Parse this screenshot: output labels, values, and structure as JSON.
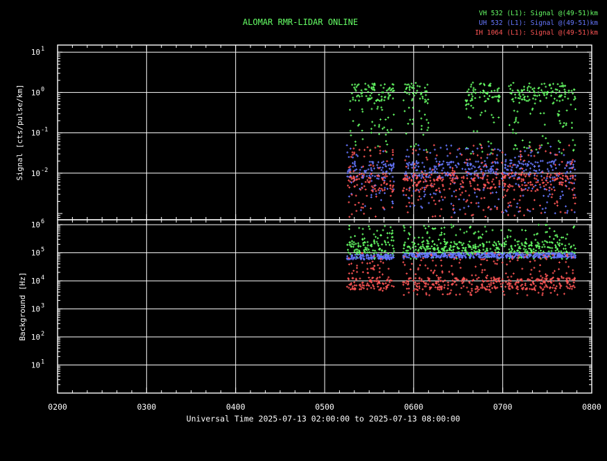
{
  "title": "ALOMAR RMR-LIDAR ONLINE",
  "legend": [
    {
      "name": "VH 532 (L1): Signal @(49-51)km",
      "color": "#66ff66"
    },
    {
      "name": "UH 532 (L1): Signal @(49-51)km",
      "color": "#6677ff"
    },
    {
      "name": "IH 1064 (L1): Signal @(49-51)km",
      "color": "#ff5555"
    }
  ],
  "colors": {
    "background": "#000000",
    "axes": "#ffffff",
    "grid": "#ffffff",
    "title": "#66ff66"
  },
  "chart_data": [
    {
      "type": "scatter",
      "ylabel": "Signal [cts/pulse/km]",
      "yscale": "log",
      "ylim": [
        0.0007,
        15
      ],
      "yticks": [
        {
          "base": "10",
          "exp": "1"
        },
        {
          "base": "10",
          "exp": "0"
        },
        {
          "base": "10",
          "exp": "-1"
        },
        {
          "base": "10",
          "exp": "-2"
        }
      ],
      "ytick_values": [
        10,
        1,
        0.1,
        0.01
      ],
      "xlim": [
        2,
        8
      ],
      "grid": true,
      "series": [
        {
          "name": "VH 532 (L1): Signal @(49-51)km",
          "segments": [
            [
              5.25,
              5.78
            ],
            [
              5.88,
              6.17
            ],
            [
              6.58,
              6.97
            ],
            [
              7.07,
              7.82
            ]
          ],
          "y_range": [
            0.03,
            1.8
          ],
          "typical": 1.0
        },
        {
          "name": "UH 532 (L1): Signal @(49-51)km",
          "segments": [
            [
              5.25,
              5.78
            ],
            [
              5.88,
              6.97
            ],
            [
              6.99,
              7.82
            ]
          ],
          "y_range": [
            0.001,
            0.05
          ],
          "typical": 0.012
        },
        {
          "name": "IH 1064 (L1): Signal @(49-51)km",
          "segments": [
            [
              5.25,
              5.78
            ],
            [
              5.88,
              6.97
            ],
            [
              6.99,
              7.82
            ]
          ],
          "y_range": [
            0.0008,
            0.05
          ],
          "typical": 0.006
        }
      ]
    },
    {
      "type": "scatter",
      "ylabel": "Background [Hz]",
      "yscale": "log",
      "ylim": [
        1,
        1500000
      ],
      "yticks": [
        {
          "base": "10",
          "exp": "6"
        },
        {
          "base": "10",
          "exp": "5"
        },
        {
          "base": "10",
          "exp": "4"
        },
        {
          "base": "10",
          "exp": "3"
        },
        {
          "base": "10",
          "exp": "2"
        },
        {
          "base": "10",
          "exp": "1"
        }
      ],
      "ytick_values": [
        1000000,
        100000,
        10000,
        1000,
        100,
        10
      ],
      "xlabel": "Universal Time 2025-07-13 02:00:00 to 2025-07-13 08:00:00",
      "xticks": [
        "0200",
        "0300",
        "0400",
        "0500",
        "0600",
        "0700",
        "0800"
      ],
      "xtick_values": [
        2,
        3,
        4,
        5,
        6,
        7,
        8
      ],
      "xlim": [
        2,
        8
      ],
      "grid": true,
      "series": [
        {
          "name": "VH 532 (L1): Signal @(49-51)km",
          "segments": [
            [
              5.25,
              5.78
            ],
            [
              5.88,
              7.82
            ]
          ],
          "y_range": [
            60000,
            1000000
          ],
          "typical": 150000
        },
        {
          "name": "UH 532 (L1): Signal @(49-51)km",
          "segments": [
            [
              5.25,
              5.78
            ],
            [
              5.88,
              7.82
            ]
          ],
          "y_range": [
            50000,
            100000
          ],
          "typical": 70000
        },
        {
          "name": "IH 1064 (L1): Signal @(49-51)km",
          "segments": [
            [
              5.25,
              5.78
            ],
            [
              5.88,
              7.82
            ]
          ],
          "y_range": [
            3000,
            100000
          ],
          "typical": 8000
        }
      ]
    }
  ]
}
